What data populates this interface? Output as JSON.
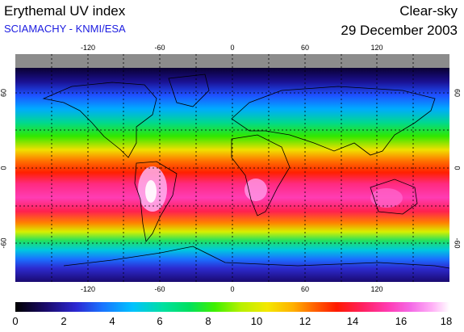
{
  "header": {
    "title": "Erythemal UV index",
    "subtitle": "SCIAMACHY - KNMI/ESA",
    "subtitle_color": "#1c1ce0",
    "mode": "Clear-sky",
    "date": "29 December 2003"
  },
  "map": {
    "projection": "equirectangular",
    "lon_ticks": [
      "-120",
      "-60",
      "0",
      "60",
      "120"
    ],
    "lat_ticks_left": [
      "60",
      "0",
      "-60"
    ],
    "lat_ticks_right": [
      "60",
      "0",
      "-60"
    ],
    "grid": "dotted",
    "no_data_color": "#8c8c8c",
    "polar_night_color": "#000000"
  },
  "colorbar": {
    "labels": [
      "0",
      "2",
      "4",
      "6",
      "8",
      "10",
      "12",
      "14",
      "16",
      "18"
    ],
    "min": 0,
    "max": 18,
    "colors": [
      "#000000",
      "#2c28d2",
      "#00c2ff",
      "#00e060",
      "#f4e800",
      "#ff1a00",
      "#ff3cb4",
      "#ffffff"
    ]
  }
}
